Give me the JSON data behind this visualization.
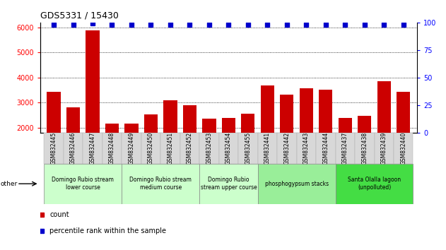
{
  "title": "GDS5331 / 15430",
  "samples": [
    "GSM832445",
    "GSM832446",
    "GSM832447",
    "GSM832448",
    "GSM832449",
    "GSM832450",
    "GSM832451",
    "GSM832452",
    "GSM832453",
    "GSM832454",
    "GSM832455",
    "GSM832441",
    "GSM832442",
    "GSM832443",
    "GSM832444",
    "GSM832437",
    "GSM832438",
    "GSM832439",
    "GSM832440"
  ],
  "counts": [
    3430,
    2810,
    5880,
    2150,
    2170,
    2530,
    3100,
    2890,
    2360,
    2380,
    2560,
    3680,
    3310,
    3560,
    3510,
    2380,
    2470,
    3840,
    3440
  ],
  "percentile": [
    98,
    98,
    99,
    98,
    98,
    98,
    98,
    98,
    98,
    98,
    98,
    98,
    98,
    98,
    98,
    98,
    98,
    98,
    98
  ],
  "ylim_left": [
    1800,
    6200
  ],
  "ylim_right": [
    0,
    100
  ],
  "yticks_left": [
    2000,
    3000,
    4000,
    5000,
    6000
  ],
  "yticks_right": [
    0,
    25,
    50,
    75,
    100
  ],
  "groups": [
    {
      "label": "Domingo Rubio stream\nlower course",
      "start": 0,
      "end": 3,
      "color": "#ccffcc"
    },
    {
      "label": "Domingo Rubio stream\nmedium course",
      "start": 4,
      "end": 7,
      "color": "#ccffcc"
    },
    {
      "label": "Domingo Rubio\nstream upper course",
      "start": 8,
      "end": 10,
      "color": "#ccffcc"
    },
    {
      "label": "phosphogypsum stacks",
      "start": 11,
      "end": 14,
      "color": "#99ee99"
    },
    {
      "label": "Santa Olalla lagoon\n(unpolluted)",
      "start": 15,
      "end": 18,
      "color": "#44dd44"
    }
  ],
  "bar_color": "#cc0000",
  "dot_color": "#0000cc",
  "title_fontsize": 9,
  "tick_fontsize": 7,
  "sample_fontsize": 5.5,
  "group_fontsize": 5.5
}
